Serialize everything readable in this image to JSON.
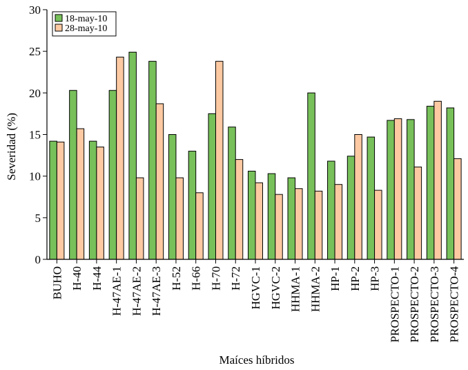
{
  "chart_data": {
    "type": "bar",
    "title": "",
    "xlabel": "Maíces híbridos",
    "ylabel": "Severidad (%)",
    "ylim": [
      0,
      30
    ],
    "yticks": [
      0,
      5,
      10,
      15,
      20,
      25,
      30
    ],
    "grid": false,
    "legend_position": "top-left",
    "categories": [
      "BUHO",
      "H-40",
      "H-44",
      "H-47AE-1",
      "H-47AE-2",
      "H-47AE-3",
      "H-52",
      "H-66",
      "H-70",
      "H-72",
      "HGVC-1",
      "HGVC-2",
      "HHMA-1",
      "HHMA-2",
      "HP-1",
      "HP-2",
      "HP-3",
      "PROSPECTO-1",
      "PROSPECTO-2",
      "PROSPECTO-3",
      "PROSPECTO-4"
    ],
    "series": [
      {
        "name": "18-may-10",
        "color": "#77c05a",
        "values": [
          14.2,
          20.3,
          14.2,
          20.3,
          24.9,
          23.8,
          15.0,
          13.0,
          17.5,
          15.9,
          10.6,
          10.3,
          9.8,
          20.0,
          11.8,
          12.4,
          14.7,
          16.7,
          16.8,
          18.4,
          18.2
        ]
      },
      {
        "name": "28-may-10",
        "color": "#fcc9a2",
        "values": [
          14.1,
          15.7,
          13.5,
          24.3,
          9.8,
          18.7,
          9.8,
          8.0,
          23.8,
          12.0,
          9.2,
          7.8,
          8.5,
          8.2,
          9.0,
          15.0,
          8.3,
          16.9,
          11.1,
          19.0,
          12.1
        ]
      }
    ]
  }
}
